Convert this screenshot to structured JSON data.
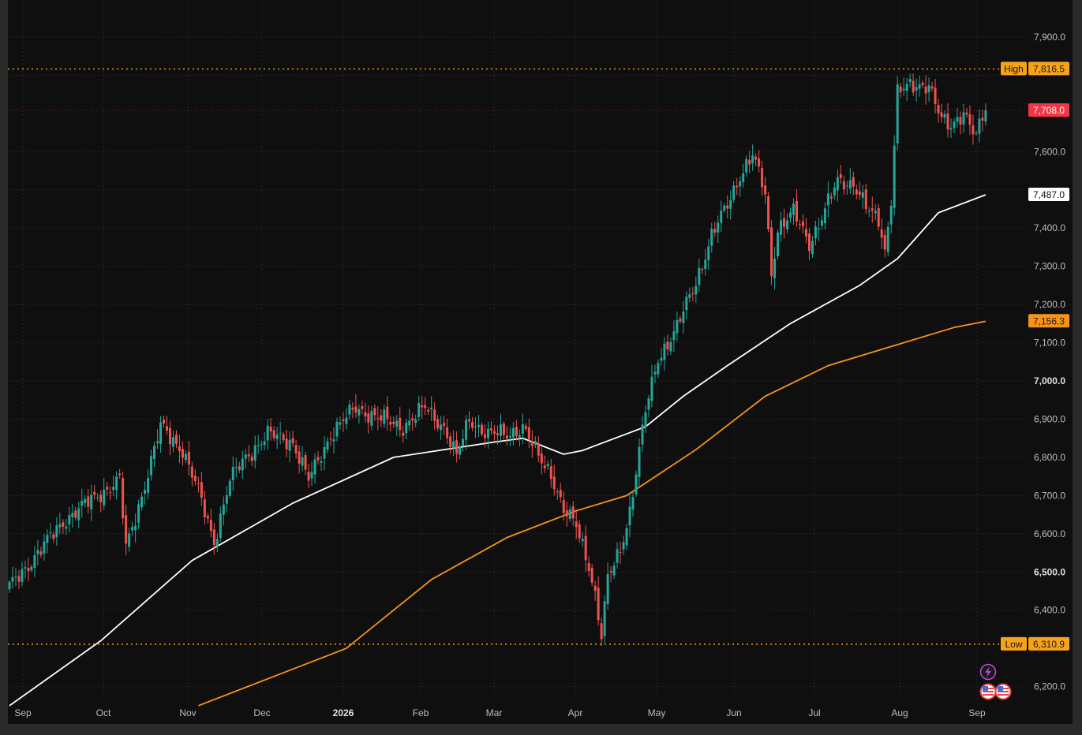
{
  "chart_data": {
    "type": "candlestick",
    "y_axis": {
      "ylim": [
        6150,
        7950
      ],
      "ticks": [
        {
          "value": 6200,
          "label": "6,200.0",
          "bold": false
        },
        {
          "value": 6400,
          "label": "6,400.0",
          "bold": false
        },
        {
          "value": 6500,
          "label": "6,500.0",
          "bold": true
        },
        {
          "value": 6600,
          "label": "6,600.0",
          "bold": false
        },
        {
          "value": 6700,
          "label": "6,700.0",
          "bold": false
        },
        {
          "value": 6800,
          "label": "6,800.0",
          "bold": false
        },
        {
          "value": 6900,
          "label": "6,900.0",
          "bold": false
        },
        {
          "value": 7000,
          "label": "7,000.0",
          "bold": true
        },
        {
          "value": 7100,
          "label": "7,100.0",
          "bold": false
        },
        {
          "value": 7200,
          "label": "7,200.0",
          "bold": false
        },
        {
          "value": 7300,
          "label": "7,300.0",
          "bold": false
        },
        {
          "value": 7400,
          "label": "7,400.0",
          "bold": false
        },
        {
          "value": 7600,
          "label": "7,600.0",
          "bold": false
        },
        {
          "value": 7900,
          "label": "7,900.0",
          "bold": false
        }
      ]
    },
    "x_axis": {
      "ticks": [
        {
          "label": "Sep",
          "bold": false
        },
        {
          "label": "Oct",
          "bold": false
        },
        {
          "label": "Nov",
          "bold": false
        },
        {
          "label": "Dec",
          "bold": false
        },
        {
          "label": "2026",
          "bold": true
        },
        {
          "label": "Feb",
          "bold": false
        },
        {
          "label": "Mar",
          "bold": false
        },
        {
          "label": "Apr",
          "bold": false
        },
        {
          "label": "May",
          "bold": false
        },
        {
          "label": "Jun",
          "bold": false
        },
        {
          "label": "Jul",
          "bold": false
        },
        {
          "label": "Aug",
          "bold": false
        },
        {
          "label": "Sep",
          "bold": false
        }
      ]
    },
    "price_tags": {
      "high": {
        "name": "High",
        "value": 7816.5,
        "label": "7,816.5",
        "color": "#f7a21b"
      },
      "low": {
        "name": "Low",
        "value": 6310.9,
        "label": "6,310.9",
        "color": "#f7a21b"
      },
      "last": {
        "value": 7708.0,
        "label": "7,708.0",
        "color": "#f23645"
      },
      "ma_fast": {
        "value": 7487.0,
        "label": "7,487.0",
        "color": "#ffffff"
      },
      "ma_slow": {
        "value": 7156.3,
        "label": "7,156.3",
        "color": "#f7931a"
      }
    },
    "up_color": "#26a69a",
    "down_color": "#ef5350",
    "anchors": [
      [
        0,
        6460
      ],
      [
        8,
        6540
      ],
      [
        18,
        6640
      ],
      [
        28,
        6700
      ],
      [
        35,
        6740
      ],
      [
        37,
        6560
      ],
      [
        42,
        6700
      ],
      [
        48,
        6880
      ],
      [
        55,
        6820
      ],
      [
        60,
        6710
      ],
      [
        65,
        6580
      ],
      [
        70,
        6740
      ],
      [
        75,
        6800
      ],
      [
        82,
        6860
      ],
      [
        90,
        6840
      ],
      [
        95,
        6740
      ],
      [
        102,
        6860
      ],
      [
        110,
        6930
      ],
      [
        118,
        6900
      ],
      [
        125,
        6880
      ],
      [
        132,
        6930
      ],
      [
        138,
        6880
      ],
      [
        142,
        6800
      ],
      [
        146,
        6900
      ],
      [
        152,
        6860
      ],
      [
        158,
        6860
      ],
      [
        163,
        6880
      ],
      [
        168,
        6800
      ],
      [
        172,
        6760
      ],
      [
        176,
        6660
      ],
      [
        180,
        6620
      ],
      [
        184,
        6520
      ],
      [
        186,
        6440
      ],
      [
        188,
        6330
      ],
      [
        190,
        6480
      ],
      [
        194,
        6560
      ],
      [
        197,
        6660
      ],
      [
        202,
        6920
      ],
      [
        206,
        7060
      ],
      [
        212,
        7140
      ],
      [
        218,
        7260
      ],
      [
        223,
        7380
      ],
      [
        228,
        7460
      ],
      [
        232,
        7540
      ],
      [
        236,
        7590
      ],
      [
        240,
        7490
      ],
      [
        242,
        7280
      ],
      [
        244,
        7400
      ],
      [
        249,
        7440
      ],
      [
        254,
        7360
      ],
      [
        258,
        7430
      ],
      [
        263,
        7520
      ],
      [
        268,
        7520
      ],
      [
        273,
        7440
      ],
      [
        276,
        7420
      ],
      [
        278,
        7340
      ],
      [
        280,
        7480
      ],
      [
        282,
        7760
      ],
      [
        288,
        7770
      ],
      [
        292,
        7780
      ],
      [
        296,
        7680
      ],
      [
        299,
        7660
      ],
      [
        303,
        7710
      ],
      [
        307,
        7640
      ],
      [
        310,
        7708
      ]
    ],
    "ma_fast": [
      [
        0,
        6150
      ],
      [
        29,
        6320
      ],
      [
        58,
        6530
      ],
      [
        90,
        6680
      ],
      [
        122,
        6800
      ],
      [
        154,
        6840
      ],
      [
        163,
        6850
      ],
      [
        176,
        6808
      ],
      [
        182,
        6818
      ],
      [
        202,
        6880
      ],
      [
        214,
        6960
      ],
      [
        228,
        7040
      ],
      [
        248,
        7150
      ],
      [
        270,
        7250
      ],
      [
        282,
        7320
      ],
      [
        295,
        7440
      ],
      [
        310,
        7487
      ]
    ],
    "ma_slow": [
      [
        60,
        6150
      ],
      [
        107,
        6300
      ],
      [
        134,
        6480
      ],
      [
        158,
        6590
      ],
      [
        180,
        6660
      ],
      [
        196,
        6700
      ],
      [
        218,
        6820
      ],
      [
        240,
        6960
      ],
      [
        260,
        7040
      ],
      [
        280,
        7090
      ],
      [
        300,
        7140
      ],
      [
        310,
        7156
      ]
    ]
  }
}
